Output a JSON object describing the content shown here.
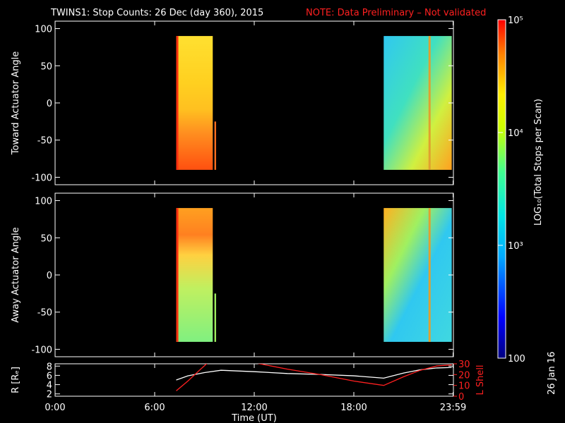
{
  "header": {
    "title": "TWINS1: Stop Counts: 26 Dec (day 360), 2015",
    "note": "NOTE: Data Preliminary – Not validated",
    "note_color": "#ff2020"
  },
  "side_date": "26 Jan 16",
  "chart_data": [
    {
      "type": "heatmap",
      "id": "toward",
      "ylabel": "Toward Actuator Angle",
      "ylim": [
        -110,
        110
      ],
      "yticks": [
        100,
        50,
        0,
        -50,
        -100
      ],
      "xlim": [
        0,
        24
      ],
      "data_blocks": [
        {
          "x_start": 7.3,
          "x_end": 9.5,
          "y_min": -90,
          "y_max": 90
        },
        {
          "x_start": 9.6,
          "x_end": 9.7,
          "y_min": -90,
          "y_max": -25
        },
        {
          "x_start": 19.8,
          "x_end": 23.9,
          "y_min": -90,
          "y_max": 90
        }
      ]
    },
    {
      "type": "heatmap",
      "id": "away",
      "ylabel": "Away Actuator Angle",
      "ylim": [
        -110,
        110
      ],
      "yticks": [
        100,
        50,
        0,
        -50,
        -100
      ],
      "xlim": [
        0,
        24
      ],
      "data_blocks": [
        {
          "x_start": 7.3,
          "x_end": 9.5,
          "y_min": -90,
          "y_max": 90
        },
        {
          "x_start": 9.6,
          "x_end": 9.7,
          "y_min": -90,
          "y_max": -25
        },
        {
          "x_start": 19.8,
          "x_end": 23.9,
          "y_min": -90,
          "y_max": 90
        }
      ]
    },
    {
      "type": "line",
      "id": "orbit",
      "ylabel": "R [Rₑ]",
      "ylabel_right": "L Shell",
      "ylim": [
        1.5,
        8.5
      ],
      "yticks": [
        2,
        4,
        6,
        8
      ],
      "y2lim": [
        0,
        30
      ],
      "y2ticks": [
        0,
        10,
        20,
        30
      ],
      "xlim": [
        0,
        24
      ],
      "xlabel": "Time (UT)",
      "xticks": [
        {
          "v": 0,
          "label": "0:00"
        },
        {
          "v": 6,
          "label": "6:00"
        },
        {
          "v": 12,
          "label": "12:00"
        },
        {
          "v": 18,
          "label": "18:00"
        },
        {
          "v": 23.98,
          "label": "23:59"
        }
      ],
      "series": [
        {
          "axis": "left",
          "color": "#ffffff",
          "x": [
            7.3,
            8.0,
            9.0,
            10.0,
            12.0,
            14.0,
            16.0,
            18.0,
            19.8,
            21.0,
            22.0,
            23.0,
            23.9
          ],
          "y": [
            5.0,
            5.9,
            6.6,
            7.1,
            6.8,
            6.4,
            6.2,
            5.9,
            5.4,
            6.5,
            7.2,
            7.6,
            7.7
          ]
        },
        {
          "axis": "right",
          "color": "#ff2020",
          "x": [
            7.3,
            8.0,
            8.7,
            9.2,
            12.0,
            14.0,
            16.0,
            18.0,
            19.8,
            21.0,
            22.0,
            23.0,
            23.9
          ],
          "y": [
            5,
            14,
            24,
            31,
            31,
            25,
            20,
            14,
            10,
            18,
            24,
            28,
            29
          ]
        }
      ]
    }
  ],
  "colorbar": {
    "label": "LOG₁₀(Total Stops per Scan)",
    "scale": "log",
    "range": [
      100,
      100000
    ],
    "ticks": [
      {
        "v": 100,
        "label": "100"
      },
      {
        "v": 1000,
        "label": "10³"
      },
      {
        "v": 10000,
        "label": "10⁴"
      },
      {
        "v": 100000,
        "label": "10⁵"
      }
    ]
  }
}
